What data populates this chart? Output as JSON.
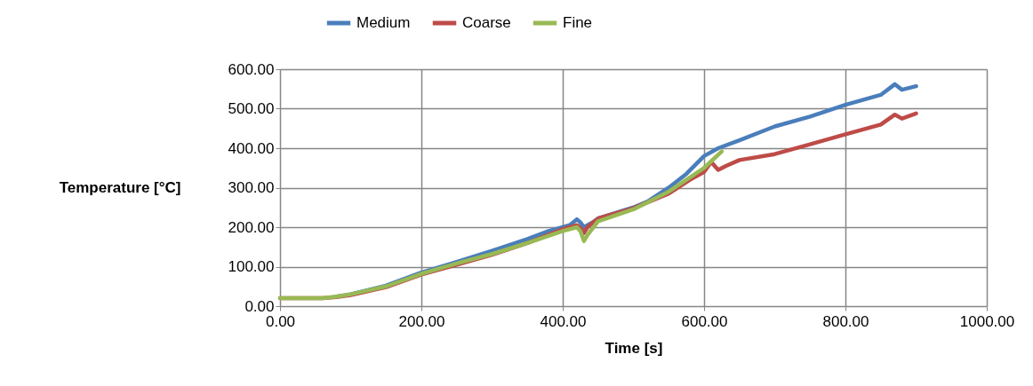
{
  "chart_data": {
    "type": "line",
    "xlabel": "Time [s]",
    "ylabel": "Temperature [°C]",
    "xlim": [
      0,
      1000
    ],
    "ylim": [
      0,
      600
    ],
    "xticks": [
      {
        "value": 0,
        "label": "0.00"
      },
      {
        "value": 200,
        "label": "200.00"
      },
      {
        "value": 400,
        "label": "400.00"
      },
      {
        "value": 600,
        "label": "600.00"
      },
      {
        "value": 800,
        "label": "800.00"
      },
      {
        "value": 1000,
        "label": "1000.00"
      }
    ],
    "yticks": [
      {
        "value": 0,
        "label": "0.00"
      },
      {
        "value": 100,
        "label": "100.00"
      },
      {
        "value": 200,
        "label": "200.00"
      },
      {
        "value": 300,
        "label": "300.00"
      },
      {
        "value": 400,
        "label": "400.00"
      },
      {
        "value": 500,
        "label": "500.00"
      },
      {
        "value": 600,
        "label": "600.00"
      }
    ],
    "grid": true,
    "legend": "top",
    "marker": "none",
    "line_style": "solid",
    "series": [
      {
        "name": "Medium",
        "color": "#4a7ebb",
        "x": [
          80,
          100,
          150,
          200,
          250,
          300,
          350,
          380,
          400,
          410,
          420,
          425,
          430,
          443,
          450,
          500,
          520,
          550,
          575,
          600,
          620,
          650,
          700,
          750,
          800,
          820,
          850,
          870,
          880,
          900
        ],
        "values": [
          24,
          30,
          52,
          85,
          112,
          140,
          170,
          190,
          200,
          205,
          220,
          212,
          200,
          213,
          222,
          250,
          265,
          300,
          335,
          380,
          400,
          420,
          455,
          480,
          510,
          520,
          535,
          562,
          548,
          557
        ]
      },
      {
        "name": "Coarse",
        "color": "#be4b48",
        "x": [
          0,
          60,
          80,
          100,
          150,
          200,
          250,
          300,
          350,
          400,
          420,
          425,
          430,
          435,
          450,
          500,
          550,
          580,
          600,
          610,
          620,
          631,
          650,
          700,
          750,
          800,
          850,
          870,
          880,
          900
        ],
        "values": [
          20,
          20,
          23,
          28,
          48,
          80,
          105,
          130,
          160,
          195,
          205,
          198,
          185,
          200,
          222,
          248,
          285,
          320,
          340,
          365,
          345,
          355,
          370,
          385,
          410,
          435,
          460,
          485,
          475,
          488
        ]
      },
      {
        "name": "Fine",
        "color": "#98b954",
        "x": [
          0,
          60,
          80,
          100,
          150,
          200,
          250,
          300,
          350,
          400,
          420,
          425,
          430,
          435,
          450,
          500,
          550,
          575,
          600,
          625
        ],
        "values": [
          20,
          20,
          24,
          30,
          50,
          82,
          108,
          132,
          160,
          190,
          200,
          190,
          165,
          180,
          215,
          245,
          290,
          320,
          350,
          392
        ]
      }
    ]
  }
}
